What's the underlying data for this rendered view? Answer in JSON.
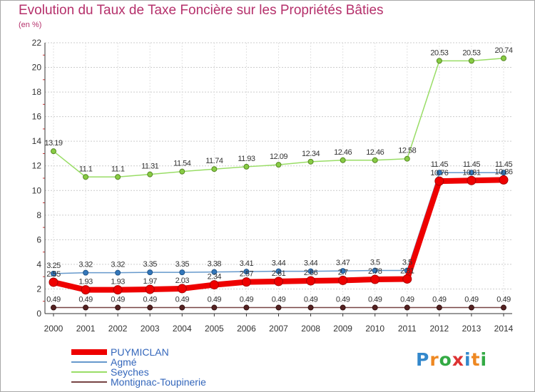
{
  "chart_data": {
    "type": "line",
    "title": "Evolution du Taux de Taxe Foncière sur les Propriétés Bâties",
    "subtitle": "(en %)",
    "x": [
      "2000",
      "2001",
      "2002",
      "2003",
      "2004",
      "2005",
      "2006",
      "2007",
      "2008",
      "2009",
      "2010",
      "2011",
      "2012",
      "2013",
      "2014"
    ],
    "ylim": [
      0,
      22
    ],
    "yticks": [
      0,
      2,
      4,
      6,
      8,
      10,
      12,
      14,
      16,
      18,
      20,
      22
    ],
    "series": [
      {
        "name": "PUYMICLAN",
        "color": "#ee0000",
        "values": [
          2.55,
          1.93,
          1.93,
          1.97,
          2.03,
          2.34,
          2.57,
          2.61,
          2.66,
          2.7,
          2.78,
          2.81,
          10.76,
          10.81,
          10.86
        ],
        "labels": [
          "2.55",
          "1.93",
          "1.93",
          "1.97",
          "2.03",
          "2.34",
          "2.57",
          "2.61",
          "2.66",
          "2.7",
          "2.78",
          "2.81",
          "10.76",
          "10.81",
          "10.86"
        ]
      },
      {
        "name": "Agmé",
        "color": "#6699cc",
        "values": [
          3.25,
          3.32,
          3.32,
          3.35,
          3.35,
          3.38,
          3.41,
          3.44,
          3.44,
          3.47,
          3.5,
          3.5,
          11.45,
          11.45,
          11.45
        ],
        "labels": [
          "3.25",
          "3.32",
          "3.32",
          "3.35",
          "3.35",
          "3.38",
          "3.41",
          "3.44",
          "3.44",
          "3.47",
          "3.5",
          "3.5",
          "11.45",
          "11.45",
          "11.45"
        ]
      },
      {
        "name": "Seyches",
        "color": "#99dd66",
        "values": [
          13.19,
          11.1,
          11.1,
          11.31,
          11.54,
          11.74,
          11.93,
          12.09,
          12.34,
          12.46,
          12.46,
          12.58,
          20.53,
          20.53,
          20.74
        ],
        "labels": [
          "13.19",
          "11.1",
          "11.1",
          "11.31",
          "11.54",
          "11.74",
          "11.93",
          "12.09",
          "12.34",
          "12.46",
          "12.46",
          "12.58",
          "20.53",
          "20.53",
          "20.74"
        ]
      },
      {
        "name": "Montignac-Toupinerie",
        "color": "#774444",
        "values": [
          0.49,
          0.49,
          0.49,
          0.49,
          0.49,
          0.49,
          0.49,
          0.49,
          0.49,
          0.49,
          0.49,
          0.49,
          0.49,
          0.49,
          0.49
        ],
        "labels": [
          "0.49",
          "0.49",
          "0.49",
          "0.49",
          "0.49",
          "0.49",
          "0.49",
          "0.49",
          "0.49",
          "0.49",
          "0.49",
          "0.49",
          "0.49",
          "0.49",
          "0.49"
        ]
      }
    ]
  },
  "logo": {
    "text": "Proxiti",
    "letters": [
      "P",
      "r",
      "o",
      "x",
      "i",
      "t",
      "i"
    ],
    "colors": [
      "#3388cc",
      "#ee8822",
      "#33aa44",
      "#dd3333",
      "#3388cc",
      "#ee8822",
      "#33aa44"
    ]
  }
}
